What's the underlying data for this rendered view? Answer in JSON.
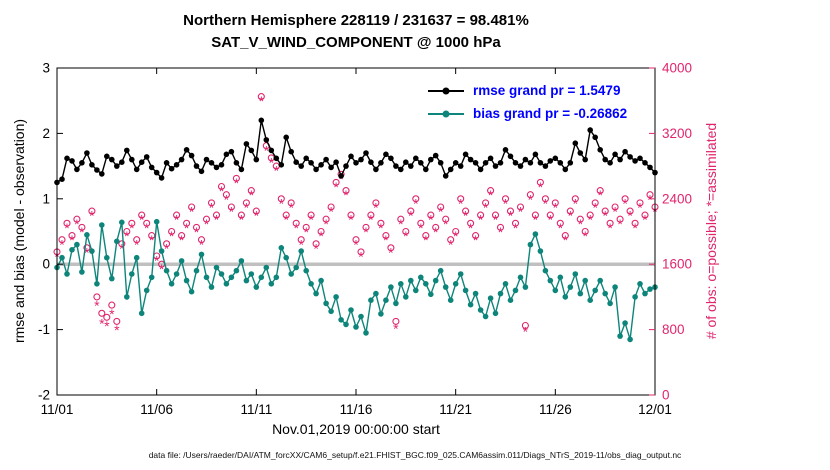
{
  "figure": {
    "title_line1": "Northern Hemisphere 228119 / 231637 = 98.481%",
    "title_line2": "SAT_V_WIND_COMPONENT @ 1000 hPa",
    "xlabel": "Nov.01,2019 00:00:00 start",
    "ylabel_left": "rmse and bias (model - observation)",
    "ylabel_right": "# of obs: o=possible; *=assimilated",
    "caption": "data file: /Users/raeder/DAI/ATM_forcXX/CAM6_setup/f.e21.FHIST_BGC.f09_025.CAM6assim.011/Diags_NTrS_2019-11/obs_diag_output.nc",
    "legend": [
      {
        "label": "rmse grand pr = 1.5479",
        "color": "#000000"
      },
      {
        "label": "bias grand pr = -0.26862",
        "color": "#0e857a"
      }
    ],
    "colors": {
      "rmse": "#000000",
      "bias": "#0e857a",
      "obs": "#e0256d",
      "zero_line": "#c0c0c0",
      "legend_text": "#0000ff",
      "axis_text": "#000000"
    }
  },
  "chart_data": {
    "type": "line",
    "title": "Northern Hemisphere 228119 / 231637 = 98.481% | SAT_V_WIND_COMPONENT @ 1000 hPa",
    "counts": {
      "assimilated": 228119,
      "possible": 231637,
      "percent_assimilated": 98.481
    },
    "stats": {
      "rmse_grand_pr": 1.5479,
      "bias_grand_pr": -0.26862
    },
    "legend_position": "top-right-inside",
    "grid": false,
    "zero_line": true,
    "x_axis": {
      "label": "Nov.01,2019 00:00:00 start",
      "range_days": [
        0,
        30
      ],
      "tick_days": [
        0,
        5,
        10,
        15,
        20,
        25,
        30
      ],
      "tick_labels": [
        "11/01",
        "11/06",
        "11/11",
        "11/16",
        "11/21",
        "11/26",
        "12/01"
      ],
      "samples_per_day": 4
    },
    "y_left": {
      "label": "rmse and bias (model - observation)",
      "lim": [
        -2,
        3
      ],
      "ticks": [
        -2,
        -1,
        0,
        1,
        2,
        3
      ]
    },
    "y_right": {
      "label": "# of obs: o=possible; *=assimilated",
      "lim": [
        0,
        4000
      ],
      "ticks": [
        0,
        800,
        1600,
        2400,
        3200,
        4000
      ]
    },
    "series": [
      {
        "name": "rmse",
        "style": "dot-line",
        "axis": "left",
        "color": "#000000",
        "values": [
          1.25,
          1.3,
          1.62,
          1.58,
          1.45,
          1.55,
          1.7,
          1.52,
          1.44,
          1.38,
          1.65,
          1.6,
          1.5,
          1.56,
          1.74,
          1.6,
          1.45,
          1.56,
          1.64,
          1.48,
          1.4,
          1.32,
          1.55,
          1.46,
          1.52,
          1.6,
          1.75,
          1.66,
          1.5,
          1.42,
          1.6,
          1.55,
          1.48,
          1.52,
          1.68,
          1.72,
          1.55,
          1.45,
          1.84,
          1.74,
          1.6,
          2.2,
          1.9,
          1.74,
          1.62,
          1.52,
          1.94,
          1.72,
          1.56,
          1.5,
          1.62,
          1.55,
          1.45,
          1.52,
          1.6,
          1.48,
          1.56,
          1.35,
          1.5,
          1.65,
          1.55,
          1.6,
          1.7,
          1.56,
          1.45,
          1.55,
          1.68,
          1.62,
          1.5,
          1.45,
          1.56,
          1.5,
          1.62,
          1.55,
          1.45,
          1.6,
          1.66,
          1.55,
          1.35,
          1.45,
          1.55,
          1.5,
          1.68,
          1.6,
          1.55,
          1.45,
          1.55,
          1.62,
          1.5,
          1.55,
          1.75,
          1.65,
          1.55,
          1.5,
          1.6,
          1.55,
          1.68,
          1.55,
          1.5,
          1.58,
          1.62,
          1.55,
          1.45,
          1.55,
          1.85,
          1.7,
          1.6,
          2.05,
          1.94,
          1.75,
          1.6,
          1.55,
          1.68,
          1.6,
          1.72,
          1.64,
          1.58,
          1.62,
          1.55,
          1.48,
          1.4
        ]
      },
      {
        "name": "bias",
        "style": "dot-line",
        "axis": "left",
        "color": "#0e857a",
        "values": [
          -0.05,
          0.1,
          -0.15,
          0.22,
          0.3,
          -0.12,
          0.45,
          0.2,
          -0.3,
          0.6,
          0.1,
          -0.22,
          0.35,
          0.64,
          -0.5,
          -0.15,
          0.1,
          -0.75,
          -0.4,
          -0.2,
          0.65,
          0.2,
          -0.1,
          -0.3,
          -0.15,
          0.05,
          -0.25,
          -0.42,
          -0.1,
          0.15,
          -0.2,
          -0.35,
          -0.05,
          -0.15,
          -0.3,
          -0.2,
          -0.1,
          0.05,
          -0.25,
          -0.15,
          -0.35,
          -0.2,
          -0.05,
          -0.3,
          -0.2,
          0.25,
          0.1,
          -0.15,
          -0.05,
          0.2,
          -0.1,
          -0.3,
          -0.45,
          -0.25,
          -0.6,
          -0.72,
          -0.5,
          -0.85,
          -0.92,
          -0.7,
          -0.96,
          -0.8,
          -1.05,
          -0.55,
          -0.45,
          -0.76,
          -0.55,
          -0.35,
          -0.6,
          -0.3,
          -0.5,
          -0.25,
          -0.4,
          -0.2,
          -0.3,
          -0.46,
          -0.25,
          -0.1,
          -0.35,
          -0.55,
          -0.3,
          -0.15,
          -0.4,
          -0.62,
          -0.45,
          -0.7,
          -0.8,
          -0.52,
          -0.75,
          -0.45,
          -0.3,
          -0.55,
          -0.4,
          -0.2,
          -0.35,
          0.3,
          0.46,
          0.2,
          -0.1,
          -0.25,
          -0.4,
          -0.2,
          -0.5,
          -0.35,
          -0.15,
          -0.45,
          -0.25,
          -0.55,
          -0.4,
          -0.25,
          -0.45,
          -0.6,
          -0.35,
          -1.1,
          -0.9,
          -1.15,
          -0.5,
          -0.3,
          -0.45,
          -0.38,
          -0.35
        ]
      },
      {
        "name": "obs_possible",
        "style": "open-circle",
        "axis": "right",
        "color": "#e0256d",
        "values": [
          1750,
          1900,
          2100,
          1950,
          2150,
          2050,
          1800,
          2250,
          1200,
          1000,
          950,
          1100,
          900,
          1850,
          2000,
          2100,
          1900,
          2200,
          2100,
          1950,
          1700,
          1600,
          1850,
          2000,
          2200,
          1950,
          2100,
          2300,
          2050,
          1900,
          2150,
          2350,
          2200,
          2550,
          2450,
          2300,
          2650,
          2200,
          2350,
          2500,
          2250,
          3650,
          3050,
          2900,
          2800,
          2400,
          2200,
          2350,
          2100,
          1900,
          2050,
          2200,
          1850,
          2000,
          2150,
          2300,
          2600,
          2700,
          2500,
          2200,
          1900,
          1750,
          2050,
          2200,
          2350,
          2100,
          1950,
          1800,
          900,
          2150,
          2000,
          2250,
          2400,
          2100,
          1950,
          2200,
          2050,
          2300,
          2150,
          1900,
          2000,
          2400,
          2250,
          2100,
          1950,
          2200,
          2350,
          2500,
          2200,
          2050,
          2400,
          2250,
          2100,
          2300,
          850,
          2450,
          2200,
          2600,
          2400,
          2200,
          2350,
          2100,
          1950,
          2250,
          2400,
          2150,
          2000,
          2200,
          2350,
          2500,
          2250,
          2100,
          2300,
          2150,
          2400,
          2250,
          2100,
          2350,
          2200,
          2450,
          2300
        ]
      },
      {
        "name": "obs_assimilated",
        "style": "asterisk",
        "axis": "right",
        "color": "#e0256d",
        "values": [
          1700,
          1850,
          2050,
          1900,
          2100,
          2000,
          1750,
          2200,
          1100,
          880,
          850,
          1000,
          800,
          1800,
          1950,
          2050,
          1850,
          2150,
          2050,
          1900,
          1650,
          1550,
          1800,
          1950,
          2150,
          1900,
          2050,
          2250,
          2000,
          1850,
          2100,
          2300,
          2150,
          2500,
          2400,
          2250,
          2600,
          2150,
          2300,
          2450,
          2200,
          3600,
          3000,
          2850,
          2750,
          2350,
          2150,
          2300,
          2050,
          1850,
          2000,
          2150,
          1800,
          1950,
          2100,
          2250,
          2550,
          2650,
          2450,
          2150,
          1850,
          1700,
          2000,
          2150,
          2300,
          2050,
          1900,
          1750,
          820,
          2100,
          1950,
          2200,
          2350,
          2050,
          1900,
          2150,
          2000,
          2250,
          2100,
          1850,
          1950,
          2350,
          2200,
          2050,
          1900,
          2150,
          2300,
          2450,
          2150,
          2000,
          2350,
          2200,
          2050,
          2250,
          780,
          2400,
          2150,
          2550,
          2350,
          2150,
          2300,
          2050,
          1900,
          2200,
          2350,
          2100,
          1950,
          2150,
          2300,
          2450,
          2200,
          2050,
          2250,
          2100,
          2350,
          2200,
          2050,
          2300,
          2150,
          2400,
          2250
        ]
      }
    ]
  }
}
